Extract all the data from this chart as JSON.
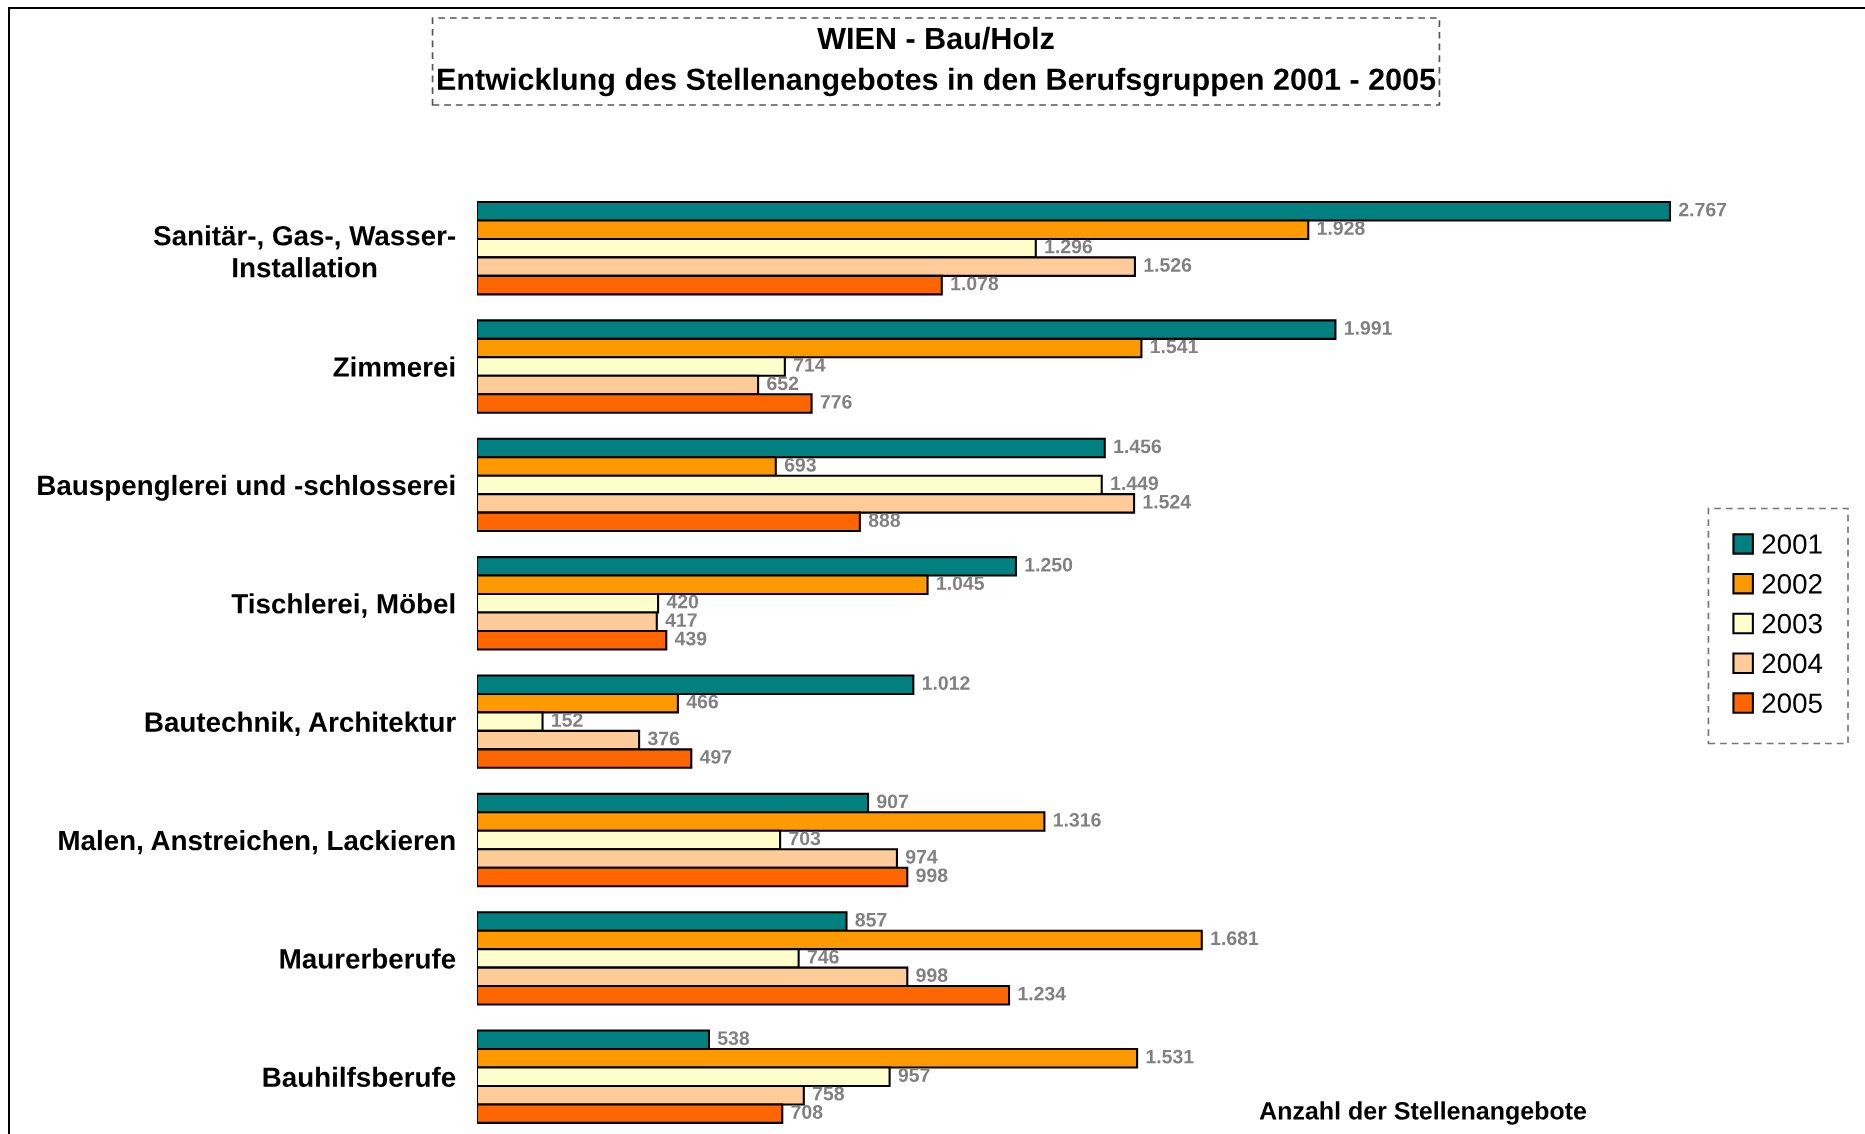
{
  "chart_data": {
    "type": "bar",
    "orientation": "horizontal",
    "title": "WIEN - Bau/Holz",
    "subtitle": "Entwicklung des Stellenangebotes in den Berufsgruppen 2001 - 2005",
    "xlabel": "Anzahl der Stellenangebote",
    "categories": [
      "Sanitär-, Gas-, Wasser-\nInstallation",
      "Zimmerei",
      "Bauspenglerei und -schlosserei",
      "Tischlerei, Möbel",
      "Bautechnik, Architektur",
      "Malen, Anstreichen, Lackieren",
      "Maurerberufe",
      "Bauhilfsberufe"
    ],
    "series": [
      {
        "name": "2001",
        "color": "#008080",
        "values": [
          2767,
          1991,
          1456,
          1250,
          1012,
          907,
          857,
          538
        ],
        "value_labels": [
          "2.767",
          "1.991",
          "1.456",
          "1.250",
          "1.012",
          "907",
          "857",
          "538"
        ]
      },
      {
        "name": "2002",
        "color": "#ff9900",
        "values": [
          1928,
          1541,
          693,
          1045,
          466,
          1316,
          1681,
          1531
        ],
        "value_labels": [
          "1.928",
          "1.541",
          "693",
          "1.045",
          "466",
          "1.316",
          "1.681",
          "1.531"
        ]
      },
      {
        "name": "2003",
        "color": "#ffffcc",
        "values": [
          1296,
          714,
          1449,
          420,
          152,
          703,
          746,
          957
        ],
        "value_labels": [
          "1.296",
          "714",
          "1.449",
          "420",
          "152",
          "703",
          "746",
          "957"
        ]
      },
      {
        "name": "2004",
        "color": "#ffcc99",
        "values": [
          1526,
          652,
          1524,
          417,
          376,
          974,
          998,
          758
        ],
        "value_labels": [
          "1.526",
          "652",
          "1.524",
          "417",
          "376",
          "974",
          "998",
          "758"
        ]
      },
      {
        "name": "2005",
        "color": "#ff6600",
        "values": [
          1078,
          776,
          888,
          439,
          497,
          998,
          1234,
          708
        ],
        "value_labels": [
          "1.078",
          "776",
          "888",
          "439",
          "497",
          "998",
          "1.234",
          "708"
        ]
      }
    ],
    "legend": "right",
    "tick_labels": "y"
  }
}
